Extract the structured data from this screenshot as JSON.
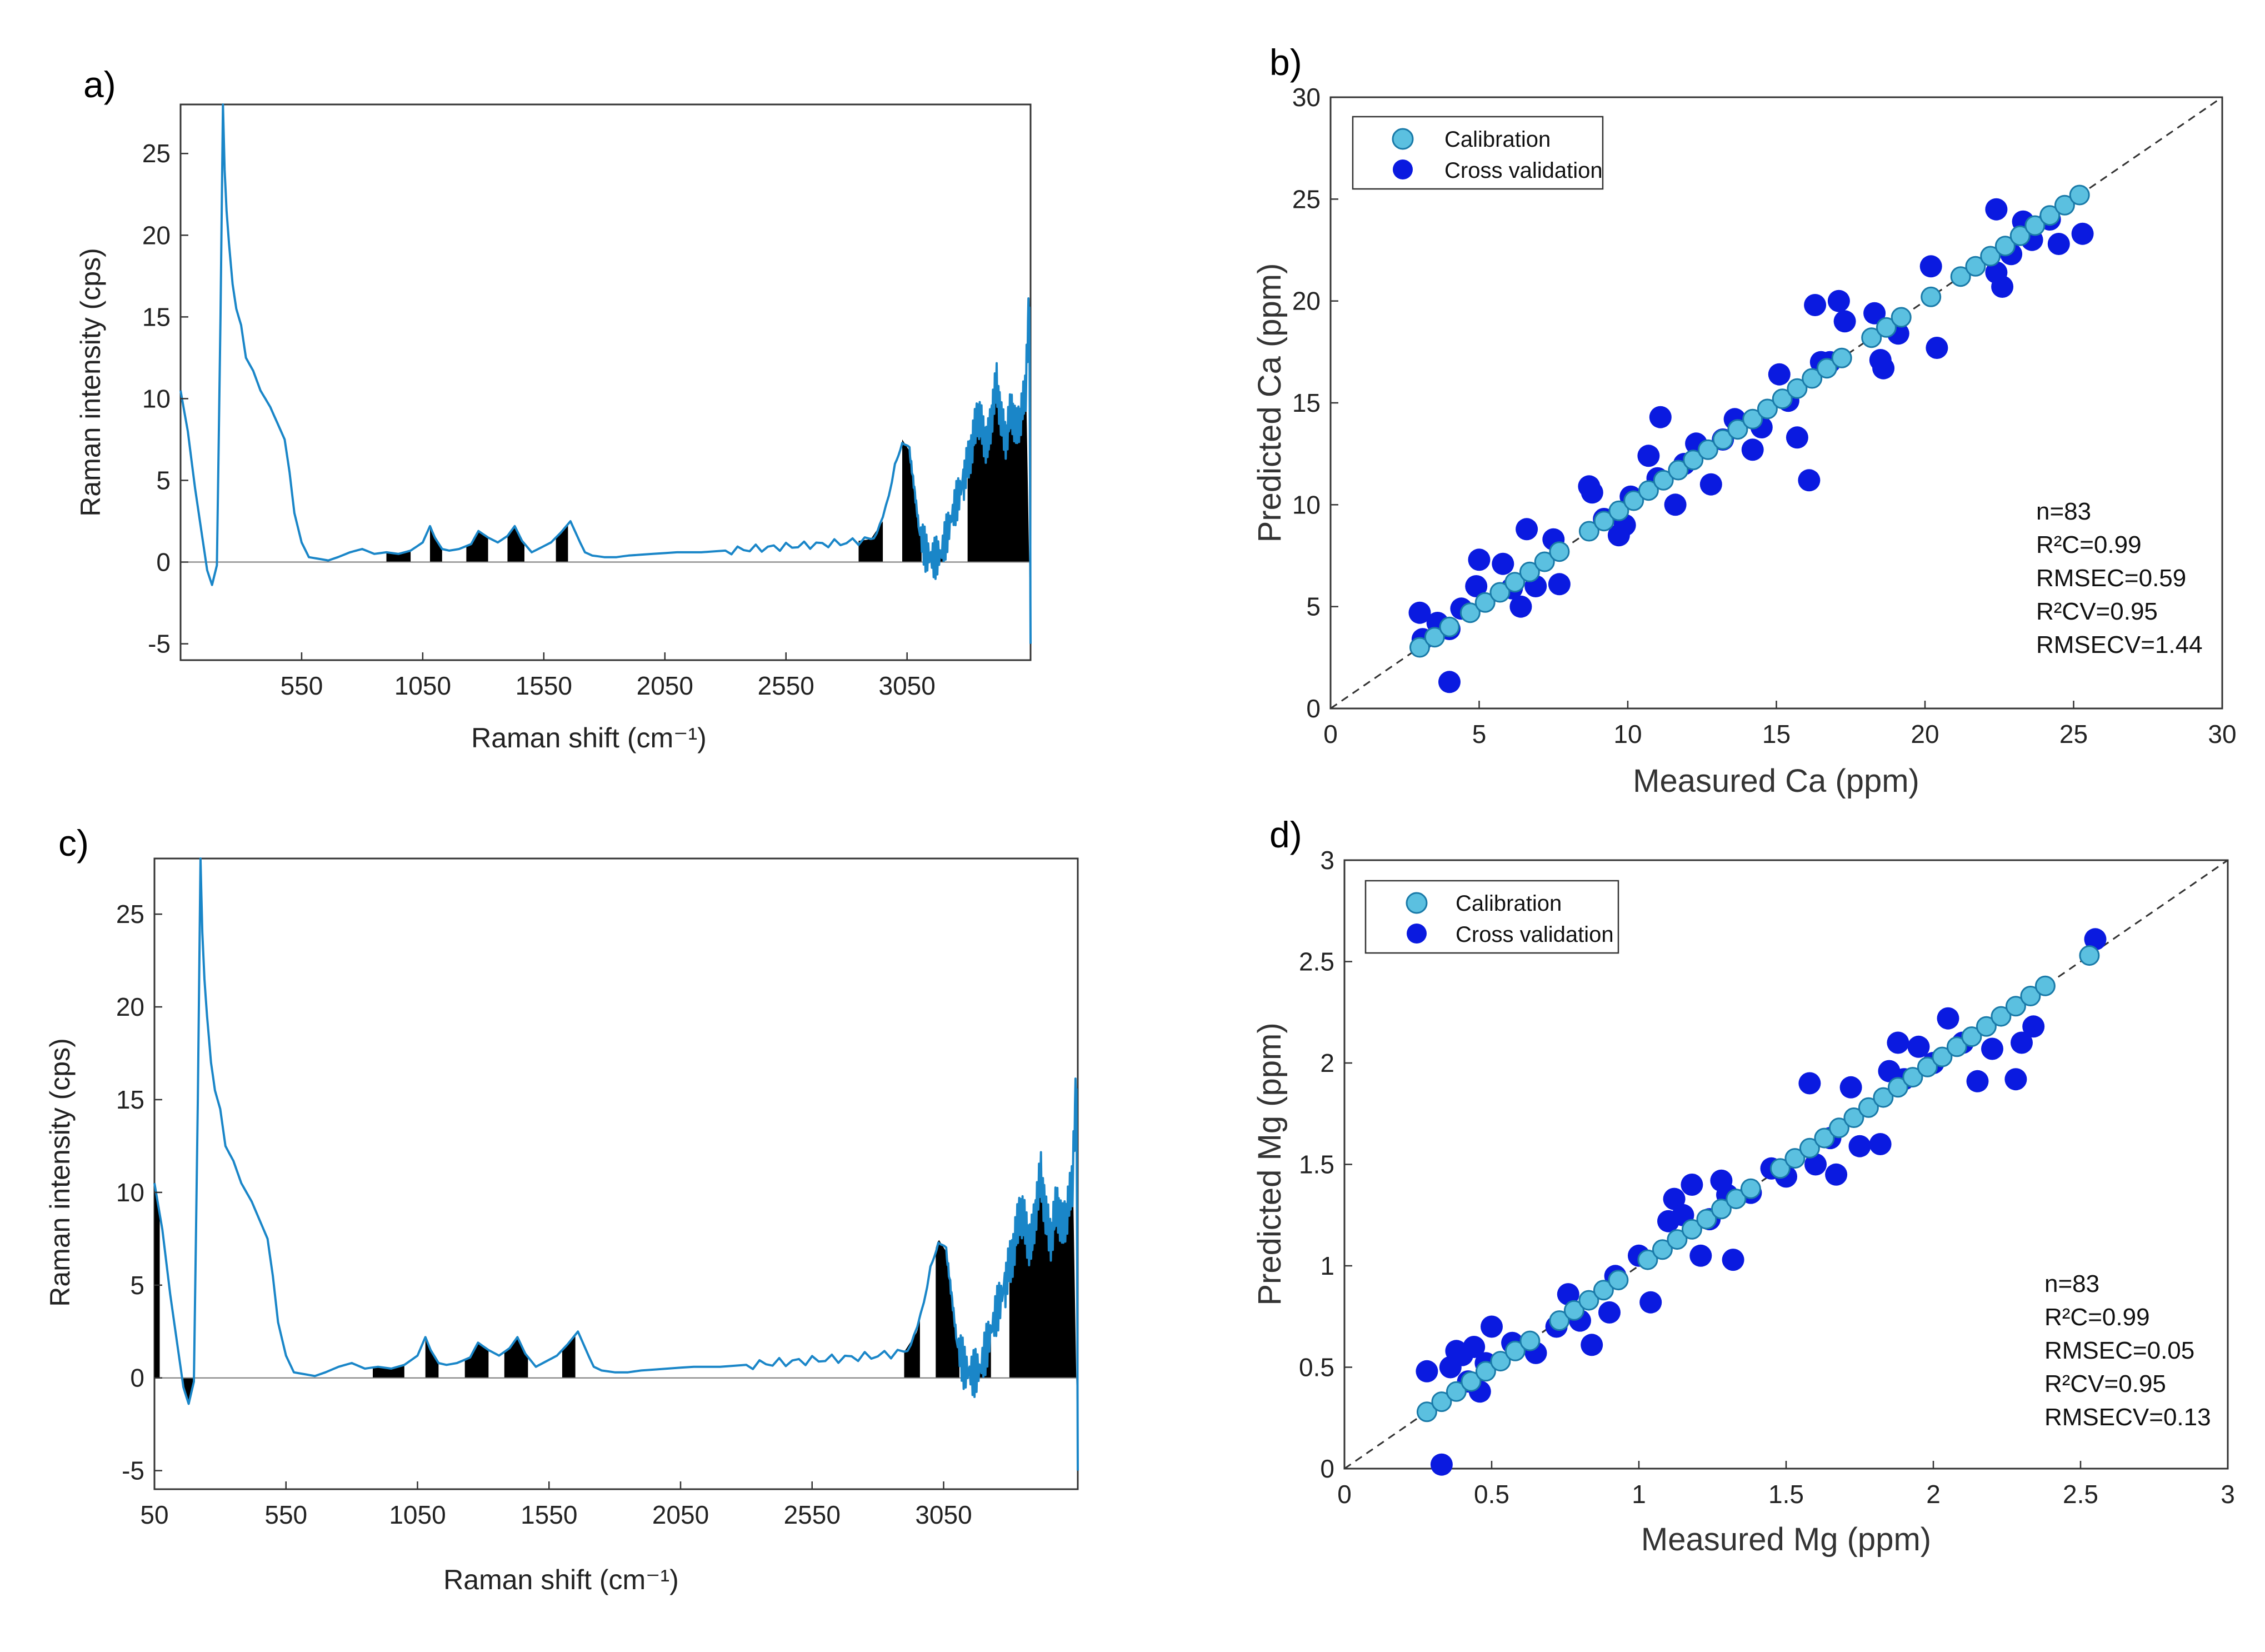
{
  "colors": {
    "spectrum": "#1a86c8",
    "filled": "#000000",
    "calibration_fill": "#5bc0e0",
    "calibration_stroke": "#1a7aa8",
    "cv": "#0a1ae0",
    "identity": "#333333"
  },
  "chart_data": [
    {
      "type": "line",
      "panel": "a)",
      "xlabel": "Raman shift (cm⁻¹)",
      "ylabel": "Raman intensity (cps)",
      "xlim": [
        50,
        3560
      ],
      "ylim": [
        -6,
        28
      ],
      "xticks": [
        "550",
        "1050",
        "1550",
        "2050",
        "2550",
        "3050"
      ],
      "xtick_values": [
        550,
        1050,
        1550,
        2050,
        2550,
        3050
      ],
      "yticks": [
        "-5",
        "0",
        "5",
        "10",
        "15",
        "20",
        "25"
      ],
      "ytick_values": [
        -5,
        0,
        5,
        10,
        15,
        20,
        25
      ],
      "series": [
        {
          "name": "Raman spectrum",
          "x": [
            50,
            80,
            110,
            140,
            160,
            180,
            200,
            215,
            225,
            232,
            240,
            250,
            265,
            280,
            300,
            320,
            350,
            380,
            400,
            420,
            450,
            480,
            500,
            520,
            550,
            580,
            620,
            660,
            700,
            750,
            800,
            850,
            900,
            950,
            1000,
            1050,
            1080,
            1100,
            1130,
            1160,
            1200,
            1250,
            1280,
            1320,
            1360,
            1400,
            1430,
            1460,
            1500,
            1540,
            1580,
            1620,
            1660,
            1700,
            1720,
            1750,
            1800,
            1850,
            1900,
            2000,
            2100,
            2200,
            2300,
            2400,
            2500,
            2600,
            2700,
            2800,
            2900,
            2950,
            3000,
            3030,
            3060,
            3080,
            3100,
            3130,
            3160,
            3190,
            3220,
            3250,
            3280,
            3300,
            3320,
            3340,
            3360,
            3380,
            3400,
            3420,
            3440,
            3460,
            3480,
            3500,
            3520,
            3540,
            3555,
            3560
          ],
          "y": [
            10.5,
            8,
            4.5,
            1.5,
            -0.5,
            -1.4,
            -0.2,
            15,
            28,
            24,
            21.5,
            19.5,
            17,
            15.5,
            14.5,
            12.5,
            11.7,
            10.5,
            10,
            9.5,
            8.5,
            7.5,
            5.5,
            3,
            1.2,
            0.3,
            0.2,
            0.1,
            0.3,
            0.6,
            0.8,
            0.5,
            0.6,
            0.5,
            0.7,
            1.2,
            2.2,
            1.5,
            0.8,
            0.7,
            0.8,
            1.1,
            1.9,
            1.5,
            1.2,
            1.6,
            2.2,
            1.3,
            0.6,
            0.9,
            1.2,
            1.8,
            2.5,
            1.2,
            0.6,
            0.4,
            0.3,
            0.3,
            0.4,
            0.5,
            0.6,
            0.6,
            0.7,
            0.8,
            0.9,
            1.0,
            1.1,
            1.2,
            1.4,
            2.5,
            6.0,
            7.5,
            6.8,
            4.5,
            2.0,
            0.5,
            0.2,
            0.5,
            2.0,
            3.5,
            4.8,
            6.0,
            7.2,
            9.0,
            8.2,
            7.0,
            9.0,
            11.0,
            8.5,
            7.5,
            9.5,
            8.0,
            9.0,
            10.5,
            16.5,
            -5.0
          ]
        }
      ],
      "filled_bands": [
        [
          900,
          1000
        ],
        [
          1080,
          1130
        ],
        [
          1230,
          1320
        ],
        [
          1400,
          1470
        ],
        [
          1600,
          1650
        ],
        [
          2850,
          2950
        ],
        [
          3030,
          3110
        ],
        [
          3160,
          3200
        ],
        [
          3300,
          3560
        ]
      ]
    },
    {
      "type": "scatter",
      "panel": "b)",
      "xlabel": "Measured Ca  (ppm)",
      "ylabel": "Predicted Ca (ppm)",
      "xlim": [
        0,
        30
      ],
      "ylim": [
        0,
        30
      ],
      "xticks": [
        "0",
        "5",
        "10",
        "15",
        "20",
        "25",
        "30"
      ],
      "yticks": [
        "0",
        "5",
        "10",
        "15",
        "20",
        "25",
        "30"
      ],
      "series": [
        {
          "name": "Calibration",
          "x": [
            3.0,
            3.5,
            4.0,
            4.7,
            5.2,
            5.7,
            6.2,
            6.7,
            7.2,
            7.7,
            8.7,
            9.2,
            9.7,
            10.2,
            10.7,
            11.2,
            11.7,
            12.2,
            12.7,
            13.2,
            13.7,
            14.2,
            14.7,
            15.2,
            15.7,
            16.2,
            16.7,
            17.2,
            18.2,
            18.7,
            19.2,
            20.2,
            21.2,
            21.7,
            22.2,
            22.7,
            23.2,
            23.7,
            24.2,
            24.7,
            25.2
          ],
          "y": [
            3.0,
            3.5,
            4.0,
            4.7,
            5.2,
            5.7,
            6.2,
            6.7,
            7.2,
            7.7,
            8.7,
            9.2,
            9.7,
            10.2,
            10.7,
            11.2,
            11.7,
            12.2,
            12.7,
            13.2,
            13.7,
            14.2,
            14.7,
            15.2,
            15.7,
            16.2,
            16.7,
            17.2,
            18.2,
            18.7,
            19.2,
            20.2,
            21.2,
            21.7,
            22.2,
            22.7,
            23.2,
            23.7,
            24.2,
            24.7,
            25.2
          ]
        },
        {
          "name": "Cross validation",
          "x": [
            3.0,
            3.1,
            3.6,
            4.0,
            4.4,
            4.9,
            5.0,
            5.8,
            6.1,
            6.4,
            6.6,
            6.9,
            7.5,
            7.7,
            8.7,
            8.8,
            9.2,
            9.7,
            9.9,
            10.1,
            10.7,
            11.0,
            11.1,
            11.6,
            11.9,
            12.3,
            12.8,
            13.2,
            13.6,
            14.2,
            14.5,
            15.1,
            15.4,
            15.7,
            16.1,
            16.3,
            16.5,
            16.8,
            17.1,
            17.3,
            18.3,
            18.5,
            18.6,
            19.1,
            20.2,
            20.4,
            22.4,
            22.4,
            22.6,
            22.9,
            23.3,
            23.6,
            24.2,
            24.5,
            25.3,
            4.0
          ],
          "y": [
            4.7,
            3.4,
            4.2,
            3.9,
            4.9,
            6.0,
            7.3,
            7.1,
            5.9,
            5.0,
            8.8,
            6.0,
            8.3,
            6.1,
            10.9,
            10.6,
            9.3,
            8.5,
            9.0,
            10.4,
            12.4,
            11.3,
            14.3,
            10.0,
            12.0,
            13.0,
            11.0,
            13.2,
            14.2,
            12.7,
            13.8,
            16.4,
            15.1,
            13.3,
            11.2,
            19.8,
            17.0,
            17.0,
            20.0,
            19.0,
            19.4,
            17.1,
            16.7,
            18.4,
            21.7,
            17.7,
            24.5,
            21.4,
            20.7,
            22.3,
            23.9,
            23.0,
            24.0,
            22.8,
            23.3,
            1.3
          ]
        }
      ],
      "identity_line": true,
      "legend": [
        "Calibration",
        "Cross validation"
      ],
      "stats": [
        "n=83",
        "R²C=0.99",
        "RMSEC=0.59",
        "R²CV=0.95",
        "RMSECV=1.44"
      ]
    },
    {
      "type": "line",
      "panel": "c)",
      "xlabel": "Raman shift (cm⁻¹)",
      "ylabel": "Raman intensity (cps)",
      "xlim": [
        50,
        3560
      ],
      "ylim": [
        -6,
        28
      ],
      "xticks": [
        "50",
        "550",
        "1050",
        "1550",
        "2050",
        "2550",
        "3050"
      ],
      "xtick_values": [
        50,
        550,
        1050,
        1550,
        2050,
        2550,
        3050
      ],
      "yticks": [
        "-5",
        "0",
        "5",
        "10",
        "15",
        "20",
        "25"
      ],
      "ytick_values": [
        -5,
        0,
        5,
        10,
        15,
        20,
        25
      ],
      "series": [
        {
          "name": "Raman spectrum",
          "x": [
            50,
            80,
            110,
            140,
            160,
            180,
            200,
            215,
            225,
            232,
            240,
            250,
            265,
            280,
            300,
            320,
            350,
            380,
            400,
            420,
            450,
            480,
            500,
            520,
            550,
            580,
            620,
            660,
            700,
            750,
            800,
            850,
            900,
            950,
            1000,
            1050,
            1080,
            1100,
            1130,
            1160,
            1200,
            1250,
            1280,
            1320,
            1360,
            1400,
            1430,
            1460,
            1500,
            1540,
            1580,
            1620,
            1660,
            1700,
            1720,
            1750,
            1800,
            1850,
            1900,
            2000,
            2100,
            2200,
            2300,
            2400,
            2500,
            2600,
            2700,
            2800,
            2900,
            2950,
            3000,
            3030,
            3060,
            3080,
            3100,
            3130,
            3160,
            3190,
            3220,
            3250,
            3280,
            3300,
            3320,
            3340,
            3360,
            3380,
            3400,
            3420,
            3440,
            3460,
            3480,
            3500,
            3520,
            3540,
            3555,
            3560
          ],
          "y": [
            10.5,
            8,
            4.5,
            1.5,
            -0.5,
            -1.4,
            -0.2,
            15,
            28,
            24,
            21.5,
            19.5,
            17,
            15.5,
            14.5,
            12.5,
            11.7,
            10.5,
            10,
            9.5,
            8.5,
            7.5,
            5.5,
            3,
            1.2,
            0.3,
            0.2,
            0.1,
            0.3,
            0.6,
            0.8,
            0.5,
            0.6,
            0.5,
            0.7,
            1.2,
            2.2,
            1.5,
            0.8,
            0.7,
            0.8,
            1.1,
            1.9,
            1.5,
            1.2,
            1.6,
            2.2,
            1.3,
            0.6,
            0.9,
            1.2,
            1.8,
            2.5,
            1.2,
            0.6,
            0.4,
            0.3,
            0.3,
            0.4,
            0.5,
            0.6,
            0.6,
            0.7,
            0.8,
            0.9,
            1.0,
            1.1,
            1.2,
            1.4,
            2.5,
            6.0,
            7.5,
            6.8,
            4.5,
            2.0,
            0.5,
            0.2,
            0.5,
            2.0,
            3.5,
            4.8,
            6.0,
            7.2,
            9.0,
            8.2,
            7.0,
            9.0,
            11.0,
            8.5,
            7.5,
            9.5,
            8.0,
            9.0,
            10.5,
            16.5,
            -5.0
          ]
        }
      ],
      "filled_bands": [
        [
          50,
          70
        ],
        [
          160,
          200
        ],
        [
          880,
          1000
        ],
        [
          1080,
          1130
        ],
        [
          1230,
          1320
        ],
        [
          1380,
          1470
        ],
        [
          1600,
          1650
        ],
        [
          2900,
          2960
        ],
        [
          3020,
          3110
        ],
        [
          3160,
          3230
        ],
        [
          3300,
          3560
        ]
      ]
    },
    {
      "type": "scatter",
      "panel": "d)",
      "xlabel": "Measured Mg  (ppm)",
      "ylabel": "Predicted Mg (ppm)",
      "xlim": [
        0,
        3
      ],
      "ylim": [
        0,
        3
      ],
      "xticks": [
        "0",
        "0.5",
        "1",
        "1.5",
        "2",
        "2.5",
        "3"
      ],
      "yticks": [
        "0",
        "0.5",
        "1",
        "1.5",
        "2",
        "2.5",
        "3"
      ],
      "series": [
        {
          "name": "Calibration",
          "x": [
            0.28,
            0.33,
            0.38,
            0.43,
            0.48,
            0.53,
            0.58,
            0.63,
            0.73,
            0.78,
            0.83,
            0.88,
            0.93,
            1.03,
            1.08,
            1.13,
            1.18,
            1.23,
            1.28,
            1.33,
            1.38,
            1.48,
            1.53,
            1.58,
            1.63,
            1.68,
            1.73,
            1.78,
            1.83,
            1.88,
            1.93,
            1.98,
            2.03,
            2.08,
            2.13,
            2.18,
            2.23,
            2.28,
            2.33,
            2.38,
            2.53
          ],
          "y": [
            0.28,
            0.33,
            0.38,
            0.43,
            0.48,
            0.53,
            0.58,
            0.63,
            0.73,
            0.78,
            0.83,
            0.88,
            0.93,
            1.03,
            1.08,
            1.13,
            1.18,
            1.23,
            1.28,
            1.33,
            1.38,
            1.48,
            1.53,
            1.58,
            1.63,
            1.68,
            1.73,
            1.78,
            1.83,
            1.88,
            1.93,
            1.98,
            2.03,
            2.08,
            2.13,
            2.18,
            2.23,
            2.28,
            2.33,
            2.38,
            2.53
          ]
        },
        {
          "name": "Cross validation",
          "x": [
            0.28,
            0.36,
            0.38,
            0.4,
            0.42,
            0.44,
            0.46,
            0.48,
            0.5,
            0.57,
            0.65,
            0.72,
            0.76,
            0.8,
            0.84,
            0.9,
            0.92,
            1.0,
            1.04,
            1.1,
            1.12,
            1.15,
            1.18,
            1.21,
            1.24,
            1.28,
            1.3,
            1.32,
            1.38,
            1.45,
            1.5,
            1.58,
            1.6,
            1.65,
            1.67,
            1.72,
            1.75,
            1.82,
            1.85,
            1.88,
            1.9,
            1.95,
            2.0,
            2.05,
            2.1,
            2.15,
            2.2,
            2.28,
            2.3,
            2.34,
            2.55,
            0.33
          ],
          "y": [
            0.48,
            0.5,
            0.58,
            0.56,
            0.43,
            0.6,
            0.38,
            0.52,
            0.7,
            0.62,
            0.57,
            0.7,
            0.86,
            0.73,
            0.61,
            0.77,
            0.95,
            1.05,
            0.82,
            1.22,
            1.33,
            1.25,
            1.4,
            1.05,
            1.23,
            1.42,
            1.35,
            1.03,
            1.36,
            1.48,
            1.44,
            1.9,
            1.5,
            1.63,
            1.45,
            1.88,
            1.59,
            1.6,
            1.96,
            2.1,
            1.92,
            2.08,
            2.0,
            2.22,
            2.1,
            1.91,
            2.07,
            1.92,
            2.1,
            2.18,
            2.61,
            0.02
          ]
        }
      ],
      "identity_line": true,
      "legend": [
        "Calibration",
        "Cross validation"
      ],
      "stats": [
        "n=83",
        "R²C=0.99",
        "RMSEC=0.05",
        "R²CV=0.95",
        "RMSECV=0.13"
      ]
    }
  ]
}
